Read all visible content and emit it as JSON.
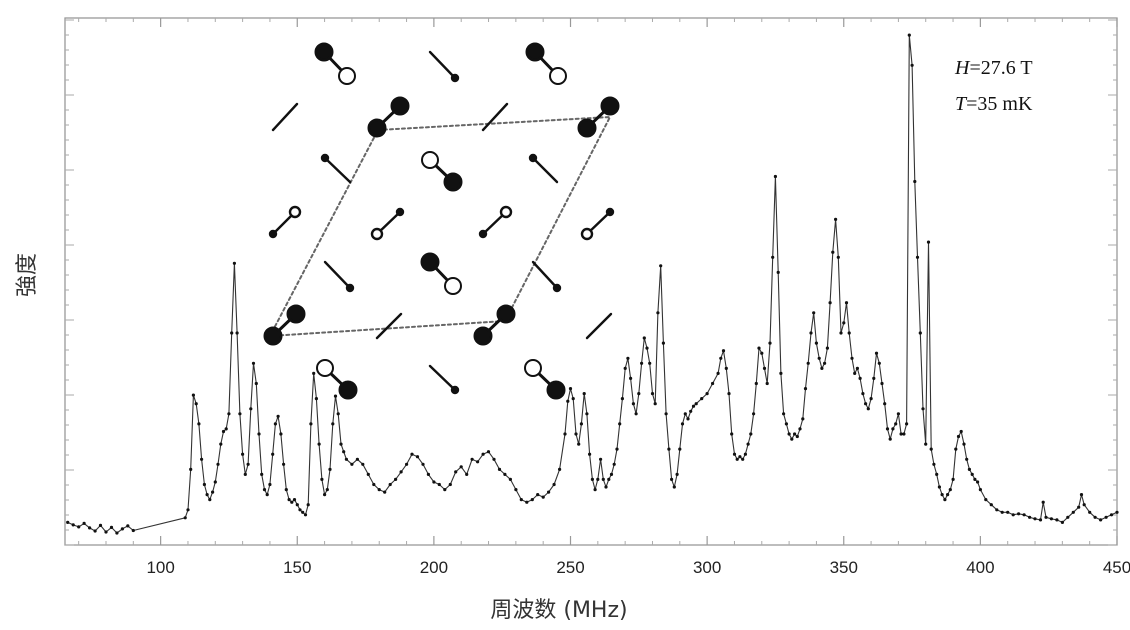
{
  "chart_data": {
    "type": "line",
    "xlabel": "周波数 (MHz)",
    "ylabel": "強度",
    "xlim": [
      65,
      450
    ],
    "ylim": [
      0,
      100
    ],
    "x_ticks": [
      100,
      150,
      200,
      250,
      300,
      350,
      400,
      450
    ],
    "y_ticks_labeled": false,
    "grid": false,
    "annotations": [
      {
        "field": "H",
        "value": "=27.6 T"
      },
      {
        "field": "T",
        "value": "=35 mK"
      }
    ],
    "inset": {
      "description_key": "spin-dimer-lattice",
      "dotted_cell": true
    },
    "series": [
      {
        "points": [
          [
            66,
            2.5
          ],
          [
            68,
            2.0
          ],
          [
            70,
            1.6
          ],
          [
            72,
            2.3
          ],
          [
            74,
            1.4
          ],
          [
            76,
            0.8
          ],
          [
            78,
            1.9
          ],
          [
            80,
            0.6
          ],
          [
            82,
            1.5
          ],
          [
            84,
            0.4
          ],
          [
            86,
            1.2
          ],
          [
            88,
            1.8
          ],
          [
            90,
            0.9
          ],
          [
            109,
            3.4
          ],
          [
            110,
            5.0
          ],
          [
            111,
            13.0
          ],
          [
            112,
            27.7
          ],
          [
            113,
            26.0
          ],
          [
            114,
            22.0
          ],
          [
            115,
            15.0
          ],
          [
            116,
            10.0
          ],
          [
            117,
            8.0
          ],
          [
            118,
            7.0
          ],
          [
            119,
            8.5
          ],
          [
            120,
            10.5
          ],
          [
            121,
            14.0
          ],
          [
            122,
            18.0
          ],
          [
            123,
            20.5
          ],
          [
            124,
            21.0
          ],
          [
            125,
            24.0
          ],
          [
            126,
            40.0
          ],
          [
            127,
            53.8
          ],
          [
            128,
            40.0
          ],
          [
            129,
            24.0
          ],
          [
            130,
            16.0
          ],
          [
            131,
            12.0
          ],
          [
            132,
            14.0
          ],
          [
            133,
            25.0
          ],
          [
            134,
            34.0
          ],
          [
            135,
            30.0
          ],
          [
            136,
            20.0
          ],
          [
            137,
            12.0
          ],
          [
            138,
            9.0
          ],
          [
            139,
            8.0
          ],
          [
            140,
            10.0
          ],
          [
            141,
            16.0
          ],
          [
            142,
            22.0
          ],
          [
            143,
            23.5
          ],
          [
            144,
            20.0
          ],
          [
            145,
            14.0
          ],
          [
            146,
            9.0
          ],
          [
            147,
            7.0
          ],
          [
            148,
            6.5
          ],
          [
            149,
            7.0
          ],
          [
            150,
            6.0
          ],
          [
            151,
            5.0
          ],
          [
            152,
            4.5
          ],
          [
            153,
            4.0
          ],
          [
            154,
            6.0
          ],
          [
            155,
            22.0
          ],
          [
            156,
            32.0
          ],
          [
            157,
            27.0
          ],
          [
            158,
            18.0
          ],
          [
            159,
            11.0
          ],
          [
            160,
            8.0
          ],
          [
            161,
            9.0
          ],
          [
            162,
            13.0
          ],
          [
            163,
            22.0
          ],
          [
            164,
            27.5
          ],
          [
            165,
            24.0
          ],
          [
            166,
            18.0
          ],
          [
            167,
            16.5
          ],
          [
            168,
            15.0
          ],
          [
            170,
            14.0
          ],
          [
            172,
            15.0
          ],
          [
            174,
            14.0
          ],
          [
            176,
            12.0
          ],
          [
            178,
            10.0
          ],
          [
            180,
            9.0
          ],
          [
            182,
            8.5
          ],
          [
            184,
            10.0
          ],
          [
            186,
            11.0
          ],
          [
            188,
            12.5
          ],
          [
            190,
            14.0
          ],
          [
            192,
            16.0
          ],
          [
            194,
            15.5
          ],
          [
            196,
            14.0
          ],
          [
            198,
            12.0
          ],
          [
            200,
            10.5
          ],
          [
            202,
            10.0
          ],
          [
            204,
            9.0
          ],
          [
            206,
            10.0
          ],
          [
            208,
            12.5
          ],
          [
            210,
            13.5
          ],
          [
            212,
            12.0
          ],
          [
            214,
            15.0
          ],
          [
            216,
            14.5
          ],
          [
            218,
            16.0
          ],
          [
            220,
            16.5
          ],
          [
            222,
            15.0
          ],
          [
            224,
            13.0
          ],
          [
            226,
            12.0
          ],
          [
            228,
            11.0
          ],
          [
            230,
            9.0
          ],
          [
            232,
            7.0
          ],
          [
            234,
            6.5
          ],
          [
            236,
            7.0
          ],
          [
            238,
            8.0
          ],
          [
            240,
            7.5
          ],
          [
            242,
            8.5
          ],
          [
            244,
            10.0
          ],
          [
            246,
            13.0
          ],
          [
            248,
            20.0
          ],
          [
            249,
            26.5
          ],
          [
            250,
            29.0
          ],
          [
            251,
            27.0
          ],
          [
            252,
            20.0
          ],
          [
            253,
            18.0
          ],
          [
            254,
            22.0
          ],
          [
            255,
            28.0
          ],
          [
            256,
            24.0
          ],
          [
            257,
            16.0
          ],
          [
            258,
            11.0
          ],
          [
            259,
            9.0
          ],
          [
            260,
            11.0
          ],
          [
            261,
            15.0
          ],
          [
            262,
            11.0
          ],
          [
            263,
            9.5
          ],
          [
            264,
            11.0
          ],
          [
            265,
            12.0
          ],
          [
            266,
            14.0
          ],
          [
            267,
            17.0
          ],
          [
            268,
            22.0
          ],
          [
            269,
            27.0
          ],
          [
            270,
            33.0
          ],
          [
            271,
            35.0
          ],
          [
            272,
            31.0
          ],
          [
            273,
            26.0
          ],
          [
            274,
            24.0
          ],
          [
            275,
            28.0
          ],
          [
            276,
            34.0
          ],
          [
            277,
            39.0
          ],
          [
            278,
            37.0
          ],
          [
            279,
            34.0
          ],
          [
            280,
            28.0
          ],
          [
            281,
            26.0
          ],
          [
            282,
            44.0
          ],
          [
            283,
            53.3
          ],
          [
            284,
            38.0
          ],
          [
            285,
            24.0
          ],
          [
            286,
            17.0
          ],
          [
            287,
            11.0
          ],
          [
            288,
            9.5
          ],
          [
            289,
            12.0
          ],
          [
            290,
            17.0
          ],
          [
            291,
            22.0
          ],
          [
            292,
            24.0
          ],
          [
            293,
            23.0
          ],
          [
            294,
            24.5
          ],
          [
            295,
            25.5
          ],
          [
            296,
            26.0
          ],
          [
            298,
            27.0
          ],
          [
            300,
            28.0
          ],
          [
            302,
            30.0
          ],
          [
            304,
            32.0
          ],
          [
            305,
            35.0
          ],
          [
            306,
            36.5
          ],
          [
            307,
            33.0
          ],
          [
            308,
            28.0
          ],
          [
            309,
            20.0
          ],
          [
            310,
            16.0
          ],
          [
            311,
            15.0
          ],
          [
            312,
            15.5
          ],
          [
            313,
            15.0
          ],
          [
            314,
            16.0
          ],
          [
            315,
            18.0
          ],
          [
            316,
            20.0
          ],
          [
            317,
            24.0
          ],
          [
            318,
            30.0
          ],
          [
            319,
            37.0
          ],
          [
            320,
            36.0
          ],
          [
            321,
            33.0
          ],
          [
            322,
            30.0
          ],
          [
            323,
            38.0
          ],
          [
            324,
            55.0
          ],
          [
            325,
            71.0
          ],
          [
            326,
            52.0
          ],
          [
            327,
            32.0
          ],
          [
            328,
            24.0
          ],
          [
            329,
            22.0
          ],
          [
            330,
            20.0
          ],
          [
            331,
            19.0
          ],
          [
            332,
            20.0
          ],
          [
            333,
            19.5
          ],
          [
            334,
            21.0
          ],
          [
            335,
            23.0
          ],
          [
            336,
            29.0
          ],
          [
            337,
            34.0
          ],
          [
            338,
            40.0
          ],
          [
            339,
            44.0
          ],
          [
            340,
            38.0
          ],
          [
            341,
            35.0
          ],
          [
            342,
            33.0
          ],
          [
            343,
            34.0
          ],
          [
            344,
            37.0
          ],
          [
            345,
            46.0
          ],
          [
            346,
            56.0
          ],
          [
            347,
            62.5
          ],
          [
            348,
            55.0
          ],
          [
            349,
            40.0
          ],
          [
            350,
            42.0
          ],
          [
            351,
            46.0
          ],
          [
            352,
            40.0
          ],
          [
            353,
            35.0
          ],
          [
            354,
            32.0
          ],
          [
            355,
            33.0
          ],
          [
            356,
            31.0
          ],
          [
            357,
            28.0
          ],
          [
            358,
            26.0
          ],
          [
            359,
            25.0
          ],
          [
            360,
            27.0
          ],
          [
            361,
            31.0
          ],
          [
            362,
            36.0
          ],
          [
            363,
            34.0
          ],
          [
            364,
            30.0
          ],
          [
            365,
            26.0
          ],
          [
            366,
            21.0
          ],
          [
            367,
            19.0
          ],
          [
            368,
            21.0
          ],
          [
            369,
            22.0
          ],
          [
            370,
            24.0
          ],
          [
            371,
            20.0
          ],
          [
            372,
            20.0
          ],
          [
            373,
            22.0
          ],
          [
            374,
            99.0
          ],
          [
            375,
            93.0
          ],
          [
            376,
            70.0
          ],
          [
            377,
            55.0
          ],
          [
            378,
            40.0
          ],
          [
            379,
            25.0
          ],
          [
            380,
            18.0
          ],
          [
            381,
            58.0
          ],
          [
            382,
            17.0
          ],
          [
            383,
            14.0
          ],
          [
            384,
            12.0
          ],
          [
            385,
            9.5
          ],
          [
            386,
            8.0
          ],
          [
            387,
            7.0
          ],
          [
            388,
            8.0
          ],
          [
            389,
            9.0
          ],
          [
            390,
            11.0
          ],
          [
            391,
            17.0
          ],
          [
            392,
            19.5
          ],
          [
            393,
            20.5
          ],
          [
            394,
            18.0
          ],
          [
            395,
            15.0
          ],
          [
            396,
            13.0
          ],
          [
            397,
            12.0
          ],
          [
            398,
            11.0
          ],
          [
            399,
            10.5
          ],
          [
            400,
            9.0
          ],
          [
            402,
            7.0
          ],
          [
            404,
            6.0
          ],
          [
            406,
            5.0
          ],
          [
            408,
            4.5
          ],
          [
            410,
            4.5
          ],
          [
            412,
            4.0
          ],
          [
            414,
            4.2
          ],
          [
            416,
            4.0
          ],
          [
            418,
            3.5
          ],
          [
            420,
            3.2
          ],
          [
            422,
            3.0
          ],
          [
            423,
            6.5
          ],
          [
            424,
            3.5
          ],
          [
            426,
            3.2
          ],
          [
            428,
            3.0
          ],
          [
            430,
            2.5
          ],
          [
            432,
            3.5
          ],
          [
            434,
            4.5
          ],
          [
            436,
            5.5
          ],
          [
            437,
            8.0
          ],
          [
            438,
            6.0
          ],
          [
            440,
            4.5
          ],
          [
            442,
            3.5
          ],
          [
            444,
            3.0
          ],
          [
            446,
            3.5
          ],
          [
            448,
            4.0
          ],
          [
            450,
            4.5
          ]
        ]
      }
    ]
  }
}
